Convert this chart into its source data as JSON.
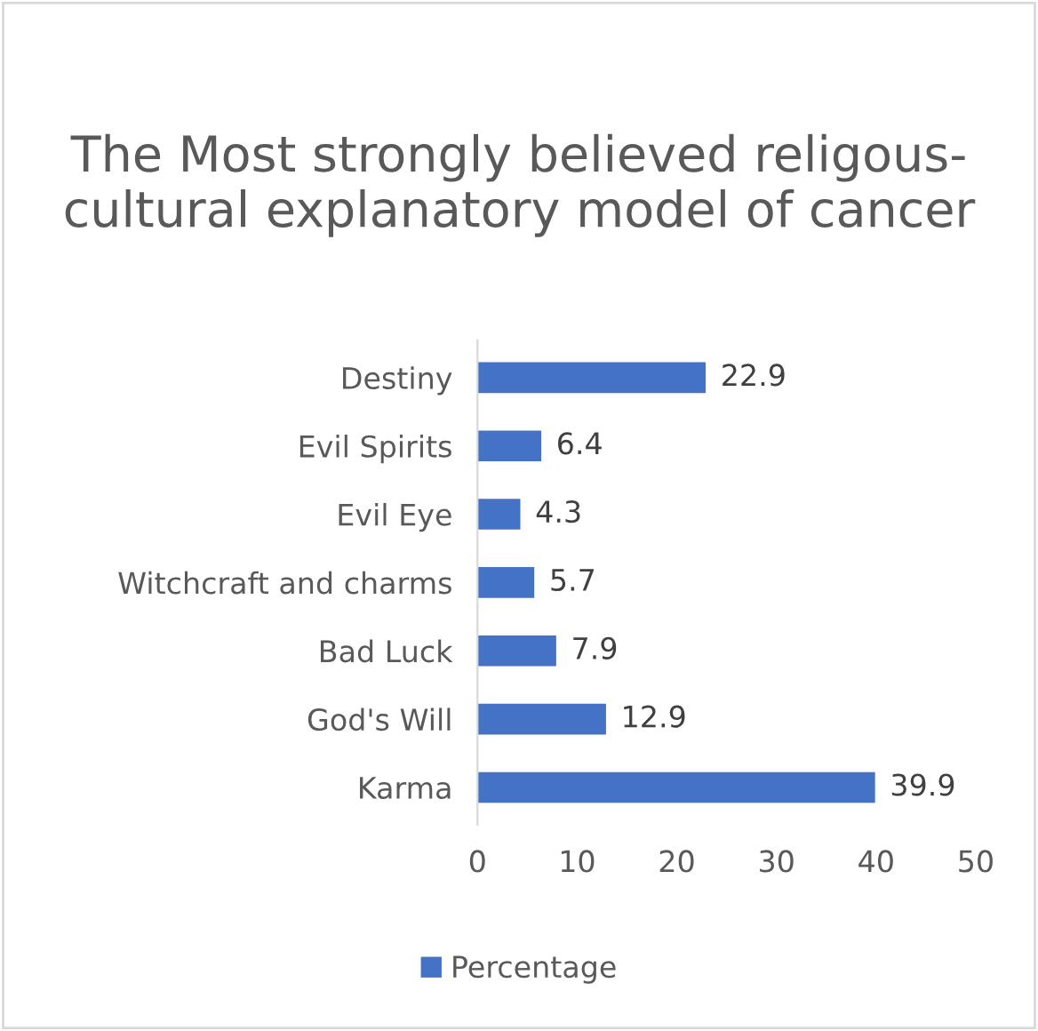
{
  "chart_data": {
    "type": "bar",
    "orientation": "horizontal",
    "title": "The Most strongly believed religous- cultural explanatory model of cancer",
    "categories": [
      "Destiny",
      "Evil Spirits",
      "Evil Eye",
      "Witchcraft and charms",
      "Bad Luck",
      "God's Will",
      "Karma"
    ],
    "series": [
      {
        "name": "Percentage",
        "color": "#4472c4",
        "values": [
          22.9,
          6.4,
          4.3,
          5.7,
          7.9,
          12.9,
          39.9
        ]
      }
    ],
    "xlim": [
      0,
      50
    ],
    "xticks": [
      0,
      10,
      20,
      30,
      40,
      50
    ],
    "data_labels": true,
    "legend": "bottom",
    "grid": false
  }
}
